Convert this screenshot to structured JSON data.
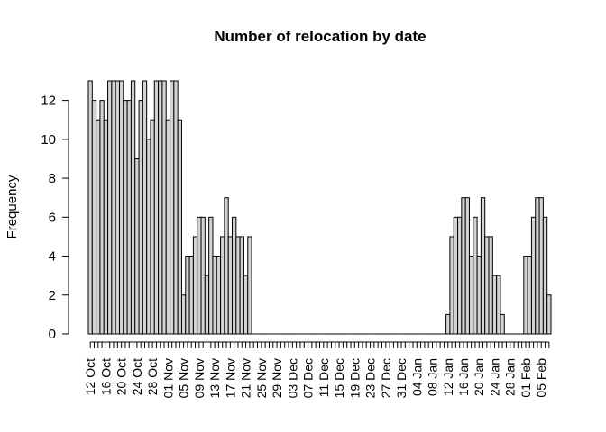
{
  "chart_data": {
    "type": "bar",
    "title": "Number of relocation by date",
    "xlabel": "",
    "ylabel": "Frequency",
    "ylim": [
      0,
      13
    ],
    "yticks": [
      0,
      2,
      4,
      6,
      8,
      10,
      12
    ],
    "grid": false,
    "bar_fill": "#d3d3d3",
    "bar_stroke": "#000000",
    "x_tick_labels": [
      "12 Oct",
      "16 Oct",
      "20 Oct",
      "24 Oct",
      "28 Oct",
      "01 Nov",
      "05 Nov",
      "09 Nov",
      "13 Nov",
      "17 Nov",
      "21 Nov",
      "25 Nov",
      "29 Nov",
      "03 Dec",
      "07 Dec",
      "11 Dec",
      "15 Dec",
      "19 Dec",
      "23 Dec",
      "27 Dec",
      "31 Dec",
      "04 Jan",
      "08 Jan",
      "12 Jan",
      "16 Jan",
      "20 Jan",
      "24 Jan",
      "28 Jan",
      "01 Feb",
      "05 Feb"
    ],
    "x_tick_step_days": 4,
    "first_bar_date": "12 Oct",
    "values": [
      13,
      12,
      11,
      12,
      11,
      13,
      13,
      13,
      13,
      12,
      12,
      13,
      9,
      12,
      13,
      10,
      11,
      13,
      13,
      13,
      11,
      13,
      13,
      11,
      2,
      4,
      4,
      5,
      6,
      6,
      3,
      6,
      4,
      4,
      5,
      7,
      5,
      6,
      5,
      5,
      3,
      5,
      0,
      0,
      0,
      0,
      0,
      0,
      0,
      0,
      0,
      0,
      0,
      0,
      0,
      0,
      0,
      0,
      0,
      0,
      0,
      0,
      0,
      0,
      0,
      0,
      0,
      0,
      0,
      0,
      0,
      0,
      0,
      0,
      0,
      0,
      0,
      0,
      0,
      0,
      0,
      0,
      0,
      0,
      0,
      0,
      0,
      0,
      0,
      0,
      0,
      0,
      1,
      5,
      6,
      6,
      7,
      7,
      4,
      6,
      4,
      7,
      5,
      5,
      3,
      3,
      1,
      0,
      0,
      0,
      0,
      0,
      4,
      4,
      6,
      7,
      7,
      6,
      2
    ]
  }
}
